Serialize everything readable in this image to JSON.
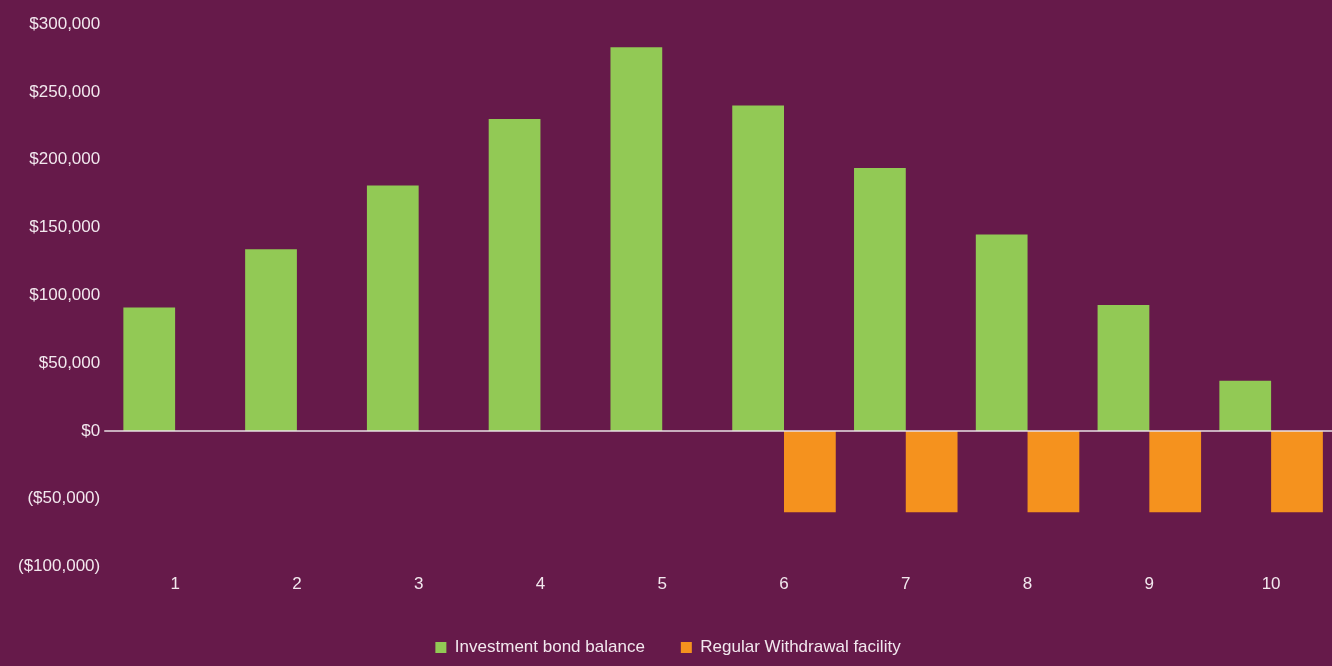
{
  "chart_data": {
    "type": "bar",
    "categories": [
      "1",
      "2",
      "3",
      "4",
      "5",
      "6",
      "7",
      "8",
      "9",
      "10"
    ],
    "series": [
      {
        "name": "Investment bond balance",
        "color": "#92c955",
        "values": [
          91000,
          134000,
          181000,
          230000,
          283000,
          240000,
          194000,
          145000,
          93000,
          37000
        ]
      },
      {
        "name": "Regular Withdrawal facility",
        "color": "#f5921e",
        "values": [
          null,
          null,
          null,
          null,
          null,
          -60000,
          -60000,
          -60000,
          -60000,
          -60000
        ]
      }
    ],
    "ylim": [
      -100000,
      300000
    ],
    "yticks": [
      {
        "value": -100000,
        "label": "($100,000)"
      },
      {
        "value": -50000,
        "label": "($50,000)"
      },
      {
        "value": 0,
        "label": "$0"
      },
      {
        "value": 50000,
        "label": "$50,000"
      },
      {
        "value": 100000,
        "label": "$100,000"
      },
      {
        "value": 150000,
        "label": "$150,000"
      },
      {
        "value": 200000,
        "label": "$200,000"
      },
      {
        "value": 250000,
        "label": "$250,000"
      },
      {
        "value": 300000,
        "label": "$300,000"
      }
    ],
    "ref_lines": [
      {
        "axis": "y",
        "value": 0,
        "color": "#e8dfe4",
        "line_style": "solid"
      }
    ],
    "grid": false,
    "legend": "bottom"
  }
}
